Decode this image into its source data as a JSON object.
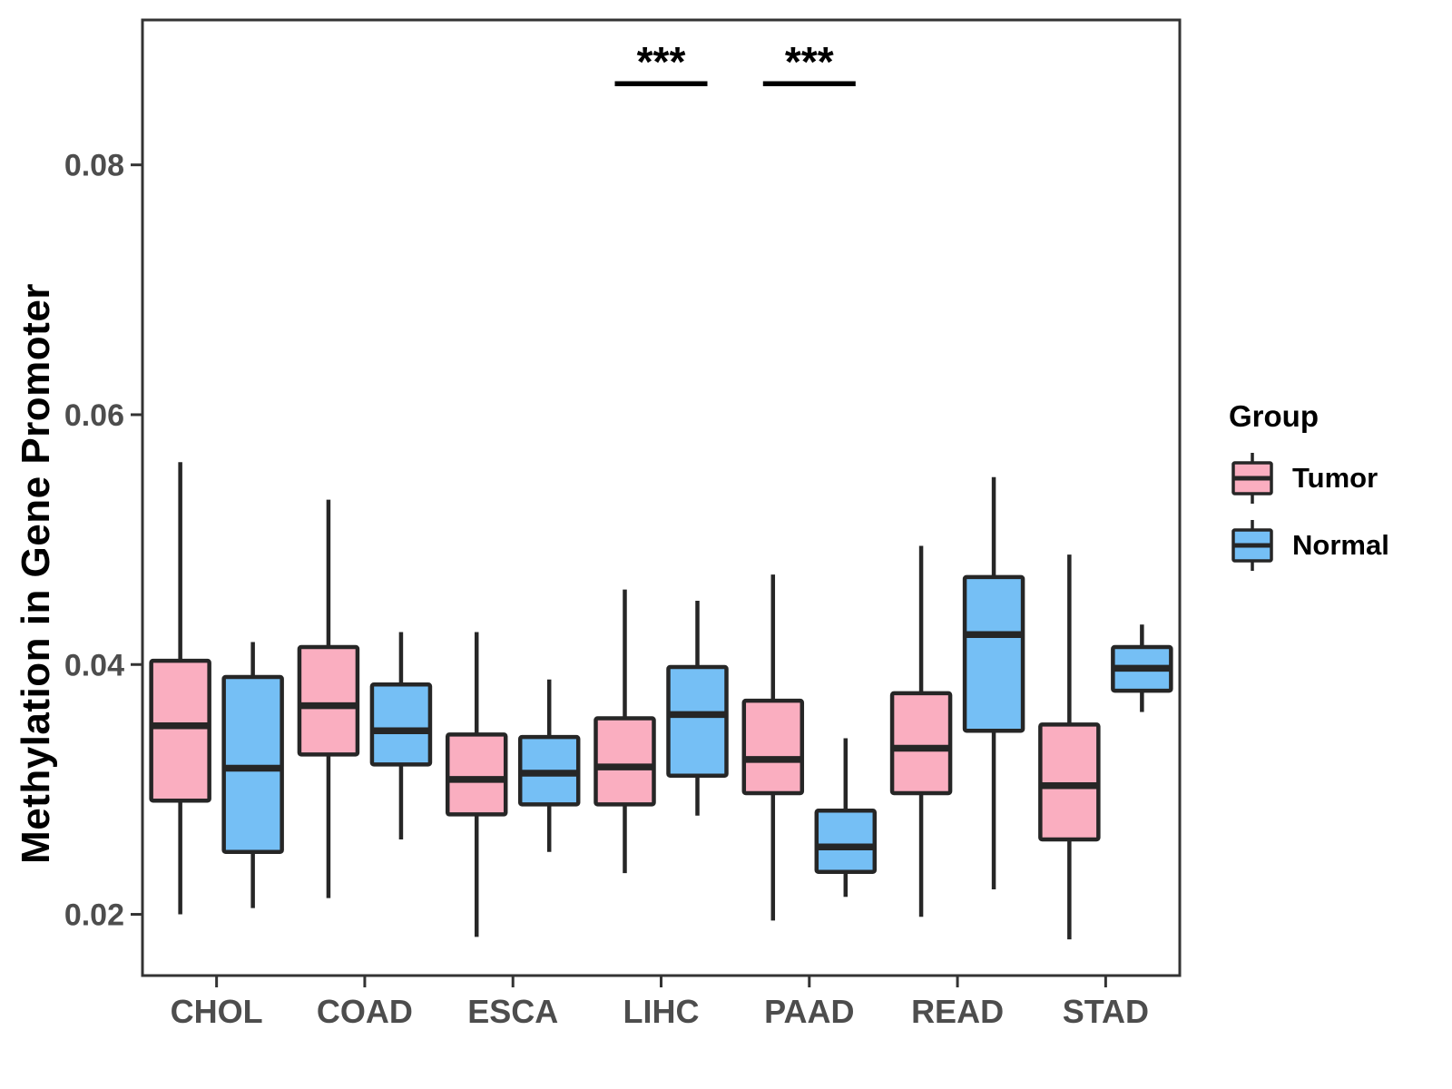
{
  "chart_data": {
    "type": "boxplot",
    "title": "",
    "xlabel": "",
    "ylabel": "Methylation in Gene Promoter",
    "categories": [
      "CHOL",
      "COAD",
      "ESCA",
      "LIHC",
      "PAAD",
      "READ",
      "STAD"
    ],
    "groups": [
      {
        "name": "Tumor",
        "color": "#FAAEC0"
      },
      {
        "name": "Normal",
        "color": "#75BFF5"
      }
    ],
    "ylim": [
      0.0151,
      0.0916
    ],
    "yticks": [
      0.02,
      0.04,
      0.06,
      0.08
    ],
    "ytick_labels": [
      "0.02",
      "0.04",
      "0.06",
      "0.08"
    ],
    "grid": false,
    "legend": {
      "title": "Group",
      "position": "right"
    },
    "series": [
      {
        "name": "Tumor",
        "boxes": [
          {
            "category": "CHOL",
            "whisker_low": 0.02,
            "q1": 0.0291,
            "median": 0.0351,
            "q3": 0.0403,
            "whisker_high": 0.0562
          },
          {
            "category": "COAD",
            "whisker_low": 0.0213,
            "q1": 0.0328,
            "median": 0.0367,
            "q3": 0.0414,
            "whisker_high": 0.0532
          },
          {
            "category": "ESCA",
            "whisker_low": 0.0182,
            "q1": 0.028,
            "median": 0.0308,
            "q3": 0.0344,
            "whisker_high": 0.0426
          },
          {
            "category": "LIHC",
            "whisker_low": 0.0233,
            "q1": 0.0288,
            "median": 0.0318,
            "q3": 0.0357,
            "whisker_high": 0.046
          },
          {
            "category": "PAAD",
            "whisker_low": 0.0195,
            "q1": 0.0297,
            "median": 0.0324,
            "q3": 0.0371,
            "whisker_high": 0.0472
          },
          {
            "category": "READ",
            "whisker_low": 0.0198,
            "q1": 0.0297,
            "median": 0.0333,
            "q3": 0.0377,
            "whisker_high": 0.0495
          },
          {
            "category": "STAD",
            "whisker_low": 0.018,
            "q1": 0.026,
            "median": 0.0303,
            "q3": 0.0352,
            "whisker_high": 0.0488
          }
        ]
      },
      {
        "name": "Normal",
        "boxes": [
          {
            "category": "CHOL",
            "whisker_low": 0.0205,
            "q1": 0.025,
            "median": 0.0317,
            "q3": 0.039,
            "whisker_high": 0.0418
          },
          {
            "category": "COAD",
            "whisker_low": 0.026,
            "q1": 0.032,
            "median": 0.0347,
            "q3": 0.0384,
            "whisker_high": 0.0426
          },
          {
            "category": "ESCA",
            "whisker_low": 0.025,
            "q1": 0.0288,
            "median": 0.0313,
            "q3": 0.0342,
            "whisker_high": 0.0388
          },
          {
            "category": "LIHC",
            "whisker_low": 0.0279,
            "q1": 0.0311,
            "median": 0.036,
            "q3": 0.0398,
            "whisker_high": 0.0451
          },
          {
            "category": "PAAD",
            "whisker_low": 0.0214,
            "q1": 0.0234,
            "median": 0.0254,
            "q3": 0.0283,
            "whisker_high": 0.0341
          },
          {
            "category": "READ",
            "whisker_low": 0.022,
            "q1": 0.0347,
            "median": 0.0424,
            "q3": 0.047,
            "whisker_high": 0.055
          },
          {
            "category": "STAD",
            "whisker_low": 0.0362,
            "q1": 0.0379,
            "median": 0.0397,
            "q3": 0.0414,
            "whisker_high": 0.0432
          }
        ]
      }
    ],
    "annotations": [
      {
        "category": "LIHC",
        "label": "***",
        "bar_y": 0.0865
      },
      {
        "category": "PAAD",
        "label": "***",
        "bar_y": 0.0865
      }
    ],
    "style": {
      "box_stroke": "#262626",
      "panel_stroke": "#333333",
      "tick_text_color": "#4d4d4d",
      "annotation_color": "#000000"
    }
  }
}
